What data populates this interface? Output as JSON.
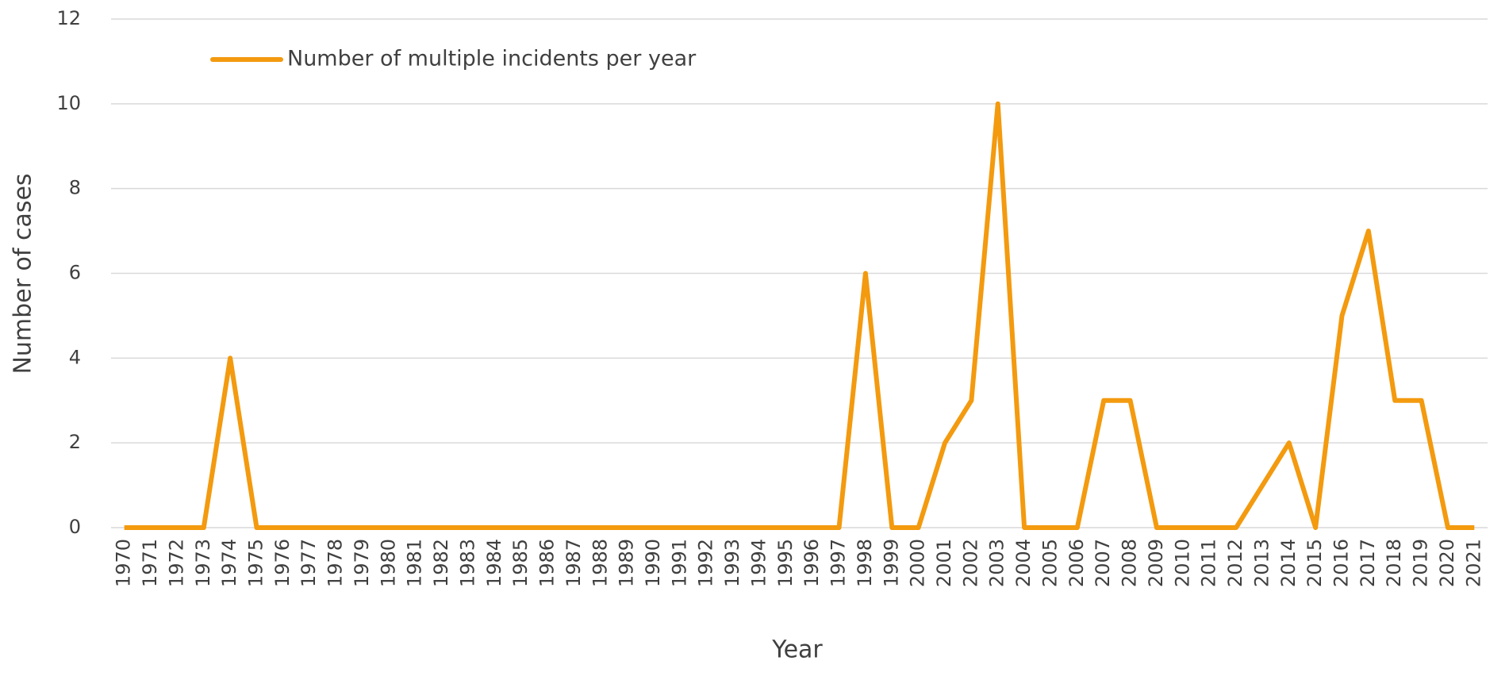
{
  "chart_data": {
    "type": "line",
    "x_label": "Year",
    "y_label": "Number of cases",
    "categories": [
      "1970",
      "1971",
      "1972",
      "1973",
      "1974",
      "1975",
      "1976",
      "1977",
      "1978",
      "1979",
      "1980",
      "1981",
      "1982",
      "1983",
      "1984",
      "1985",
      "1986",
      "1987",
      "1988",
      "1989",
      "1990",
      "1991",
      "1992",
      "1993",
      "1994",
      "1995",
      "1996",
      "1997",
      "1998",
      "1999",
      "2000",
      "2001",
      "2002",
      "2003",
      "2004",
      "2005",
      "2006",
      "2007",
      "2008",
      "2009",
      "2010",
      "2011",
      "2012",
      "2013",
      "2014",
      "2015",
      "2016",
      "2017",
      "2018",
      "2019",
      "2020",
      "2021"
    ],
    "series": [
      {
        "name": "Number of multiple incidents per year",
        "color": "#f39a0f",
        "values": [
          0,
          0,
          0,
          0,
          4,
          0,
          0,
          0,
          0,
          0,
          0,
          0,
          0,
          0,
          0,
          0,
          0,
          0,
          0,
          0,
          0,
          0,
          0,
          0,
          0,
          0,
          0,
          0,
          6,
          0,
          0,
          2,
          3,
          10,
          0,
          0,
          0,
          3,
          3,
          0,
          0,
          0,
          0,
          1,
          2,
          0,
          5,
          7,
          3,
          3,
          0,
          0
        ]
      }
    ],
    "ylim": [
      0,
      12
    ],
    "yticks": [
      0,
      2,
      4,
      6,
      8,
      10,
      12
    ],
    "grid": true,
    "legend": "top-left"
  }
}
